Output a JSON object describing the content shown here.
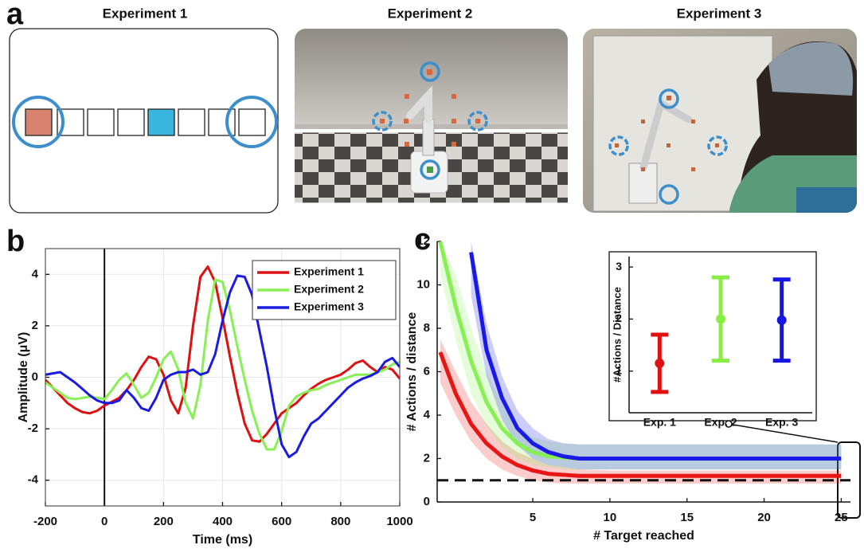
{
  "panel_labels": [
    "a",
    "b",
    "c"
  ],
  "experiments": [
    "Experiment 1",
    "Experiment 2",
    "Experiment 3"
  ],
  "chart_data": [
    {
      "type": "line",
      "xlabel": "Time (ms)",
      "ylabel": "Amplitude (μV)",
      "x": [
        -200,
        -175,
        -150,
        -125,
        -100,
        -75,
        -50,
        -25,
        0,
        25,
        50,
        75,
        100,
        125,
        150,
        175,
        200,
        225,
        250,
        275,
        300,
        325,
        350,
        375,
        400,
        425,
        450,
        475,
        500,
        525,
        550,
        575,
        600,
        625,
        650,
        675,
        700,
        725,
        750,
        775,
        800,
        825,
        850,
        875,
        900,
        925,
        950,
        975,
        1000
      ],
      "series": [
        {
          "name": "Experiment 1",
          "color": "#dd1111",
          "values": [
            -0.1,
            -0.4,
            -0.7,
            -1.0,
            -1.2,
            -1.35,
            -1.4,
            -1.3,
            -1.1,
            -0.95,
            -0.8,
            -0.5,
            -0.1,
            0.4,
            0.8,
            0.7,
            0.1,
            -0.9,
            -1.4,
            -0.4,
            2.0,
            3.9,
            4.3,
            3.7,
            2.3,
            0.8,
            -0.6,
            -1.8,
            -2.45,
            -2.5,
            -2.2,
            -1.8,
            -1.4,
            -1.2,
            -1.0,
            -0.7,
            -0.45,
            -0.25,
            -0.1,
            0.0,
            0.1,
            0.3,
            0.55,
            0.65,
            0.4,
            0.2,
            0.4,
            0.3,
            -0.05
          ]
        },
        {
          "name": "Experiment 2",
          "color": "#88f055",
          "values": [
            -0.2,
            -0.4,
            -0.6,
            -0.8,
            -0.85,
            -0.8,
            -0.75,
            -0.8,
            -0.85,
            -0.5,
            -0.1,
            0.15,
            -0.3,
            -0.8,
            -0.6,
            0.0,
            0.7,
            1.0,
            0.3,
            -1.0,
            -1.6,
            -0.3,
            2.2,
            3.8,
            3.7,
            2.6,
            1.2,
            -0.1,
            -1.3,
            -2.2,
            -2.8,
            -2.8,
            -2.1,
            -1.1,
            -0.75,
            -0.6,
            -0.5,
            -0.45,
            -0.3,
            -0.2,
            -0.1,
            0.0,
            0.1,
            0.1,
            0.1,
            0.2,
            0.3,
            0.5,
            0.6
          ]
        },
        {
          "name": "Experiment 3",
          "color": "#1a1ae0",
          "values": [
            0.1,
            0.15,
            0.2,
            0.0,
            -0.2,
            -0.45,
            -0.7,
            -0.9,
            -1.0,
            -1.0,
            -0.9,
            -0.5,
            -0.8,
            -1.2,
            -1.3,
            -0.8,
            -0.1,
            0.1,
            0.2,
            0.2,
            0.3,
            0.1,
            0.2,
            0.9,
            2.2,
            3.3,
            3.95,
            3.9,
            3.2,
            1.8,
            0.4,
            -1.2,
            -2.6,
            -3.1,
            -2.9,
            -2.3,
            -1.8,
            -1.6,
            -1.3,
            -1.0,
            -0.7,
            -0.4,
            -0.2,
            -0.05,
            0.05,
            0.2,
            0.6,
            0.75,
            0.4
          ]
        }
      ],
      "xlim": [
        -200,
        1000
      ],
      "ylim": [
        -5,
        5
      ],
      "xticks": [
        -200,
        0,
        200,
        400,
        600,
        800,
        1000
      ],
      "yticks": [
        -4,
        -2,
        0,
        2,
        4
      ],
      "grid": true,
      "legend": "upper right",
      "vline": 0
    },
    {
      "type": "line",
      "xlabel": "# Target reached",
      "ylabel": "# Actions / distance",
      "x": [
        -1,
        0,
        1,
        2,
        3,
        4,
        5,
        6,
        7,
        8,
        10,
        12,
        15,
        20,
        25
      ],
      "series": [
        {
          "color": "#e81515",
          "values": [
            6.9,
            5.0,
            3.6,
            2.7,
            2.1,
            1.7,
            1.45,
            1.3,
            1.25,
            1.2,
            1.2,
            1.2,
            1.2,
            1.2,
            1.2
          ],
          "ci_low": [
            5.5,
            4.0,
            2.8,
            2.0,
            1.5,
            1.2,
            1.0,
            0.9,
            0.85,
            0.85,
            0.85,
            0.85,
            0.85,
            0.85,
            0.85
          ],
          "ci_high": [
            7.5,
            6.0,
            4.6,
            3.6,
            2.8,
            2.3,
            2.0,
            1.7,
            1.6,
            1.5,
            1.45,
            1.45,
            1.45,
            1.45,
            1.45
          ]
        },
        {
          "color": "#88f055",
          "values": [
            12,
            9.0,
            6.5,
            4.6,
            3.4,
            2.7,
            2.3,
            2.1,
            2.05,
            2.0,
            2.0,
            2.0,
            2.0,
            2.0,
            2.0
          ],
          "ci_low": [
            10.5,
            7.5,
            5.0,
            3.5,
            2.5,
            2.0,
            1.7,
            1.6,
            1.5,
            1.5,
            1.5,
            1.5,
            1.5,
            1.5,
            1.5
          ],
          "ci_high": [
            12,
            10.5,
            8.0,
            6.0,
            4.5,
            3.5,
            3.0,
            2.8,
            2.7,
            2.65,
            2.65,
            2.65,
            2.65,
            2.65,
            2.65
          ]
        },
        {
          "color": "#1a1ae6",
          "values": [
            null,
            null,
            11.5,
            7.0,
            4.8,
            3.4,
            2.7,
            2.3,
            2.1,
            2.0,
            2.0,
            2.0,
            2.0,
            2.0,
            2.0
          ],
          "ci_low": [
            null,
            null,
            9.5,
            5.8,
            3.8,
            2.6,
            2.0,
            1.7,
            1.6,
            1.5,
            1.5,
            1.5,
            1.5,
            1.5,
            1.5
          ],
          "ci_high": [
            null,
            null,
            12,
            8.2,
            5.8,
            4.2,
            3.4,
            2.9,
            2.7,
            2.65,
            2.65,
            2.65,
            2.65,
            2.65,
            2.65
          ]
        }
      ],
      "xlim": [
        -1.2,
        25.6
      ],
      "ylim": [
        0,
        12
      ],
      "xticks": [
        5,
        10,
        15,
        20,
        25
      ],
      "yticks": [
        0,
        2,
        4,
        6,
        8,
        10,
        12
      ],
      "hline": 1
    },
    {
      "type": "errorbar",
      "ylabel": "#Actions / Distance",
      "categories": [
        "Exp. 1",
        "Exp. 2",
        "Exp. 3"
      ],
      "values": [
        1.15,
        2.0,
        1.98
      ],
      "errors": [
        0.55,
        0.8,
        0.78
      ],
      "colors": [
        "#e01010",
        "#88ee44",
        "#1515e6"
      ],
      "ylim": [
        0.2,
        3.2
      ],
      "yticks": [
        1,
        2,
        3
      ]
    }
  ]
}
